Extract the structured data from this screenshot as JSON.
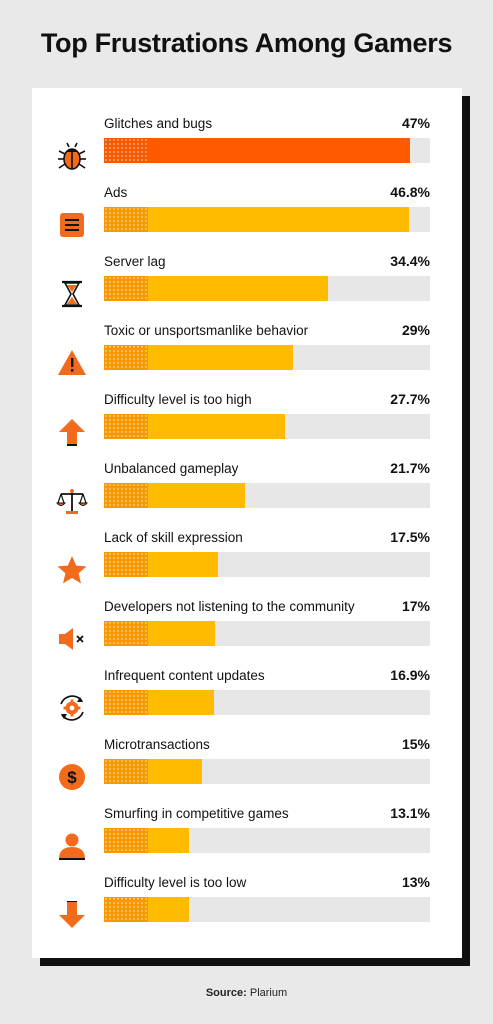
{
  "title": "Top Frustrations Among Gamers",
  "source_label": "Source:",
  "source_name": "Plarium",
  "colors": {
    "highlight": "#ff5a00",
    "bar": "#ffbb00",
    "track": "#e7e7e7",
    "icon": "#f26a1b"
  },
  "chart_data": {
    "type": "bar",
    "orientation": "horizontal",
    "xlim": [
      0,
      50
    ],
    "categories": [
      "Glitches and bugs",
      "Ads",
      "Server lag",
      "Toxic or unsportsmanlike behavior",
      "Difficulty level is too high",
      "Unbalanced gameplay",
      "Lack of skill expression",
      "Developers not listening to the community",
      "Infrequent content updates",
      "Microtransactions",
      "Smurfing in competitive games",
      "Difficulty level is too low"
    ],
    "values": [
      47,
      46.8,
      34.4,
      29,
      27.7,
      21.7,
      17.5,
      17,
      16.9,
      15,
      13.1,
      13
    ],
    "value_labels": [
      "47%",
      "46.8%",
      "34.4%",
      "29%",
      "27.7%",
      "21.7%",
      "17.5%",
      "17%",
      "16.9%",
      "15%",
      "13.1%",
      "13%"
    ],
    "icons": [
      "bug-icon",
      "ad-list-icon",
      "hourglass-icon",
      "warning-icon",
      "arrow-up-icon",
      "scales-icon",
      "star-icon",
      "speaker-mute-icon",
      "gear-refresh-icon",
      "dollar-coin-icon",
      "user-icon",
      "arrow-down-icon"
    ],
    "highlighted_index": 0
  }
}
